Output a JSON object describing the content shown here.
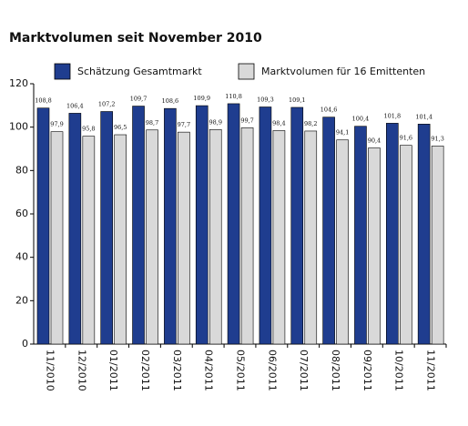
{
  "chart_data": {
    "type": "bar",
    "title": "Marktvolumen seit November 2010",
    "categories": [
      "11/2010",
      "12/2010",
      "01/2011",
      "02/2011",
      "03/2011",
      "04/2011",
      "05/2011",
      "06/2011",
      "07/2011",
      "08/2011",
      "09/2011",
      "10/2011",
      "11/2011"
    ],
    "series": [
      {
        "name": "Schätzung Gesamtmarkt",
        "color": "#1f3d8f",
        "values": [
          108.8,
          106.4,
          107.2,
          109.7,
          108.6,
          109.9,
          110.8,
          109.3,
          109.1,
          104.6,
          100.4,
          101.8,
          101.4
        ],
        "value_labels": [
          "108,8",
          "106,4",
          "107,2",
          "109,7",
          "108,6",
          "109,9",
          "110,8",
          "109,3",
          "109,1",
          "104,6",
          "100,4",
          "101,8",
          "101,4"
        ]
      },
      {
        "name": "Marktvolumen für 16 Emittenten",
        "color": "#d9d9d9",
        "values": [
          97.9,
          95.8,
          96.5,
          98.7,
          97.7,
          98.9,
          99.7,
          98.4,
          98.2,
          94.1,
          90.4,
          91.6,
          91.3
        ],
        "value_labels": [
          "97,9",
          "95,8",
          "96,5",
          "98,7",
          "97,7",
          "98,9",
          "99,7",
          "98,4",
          "98,2",
          "94,1",
          "90,4",
          "91,6",
          "91,3"
        ]
      }
    ],
    "ylim": [
      0,
      120
    ],
    "yticks": [
      0,
      20,
      40,
      60,
      80,
      100,
      120
    ],
    "grid": false
  }
}
